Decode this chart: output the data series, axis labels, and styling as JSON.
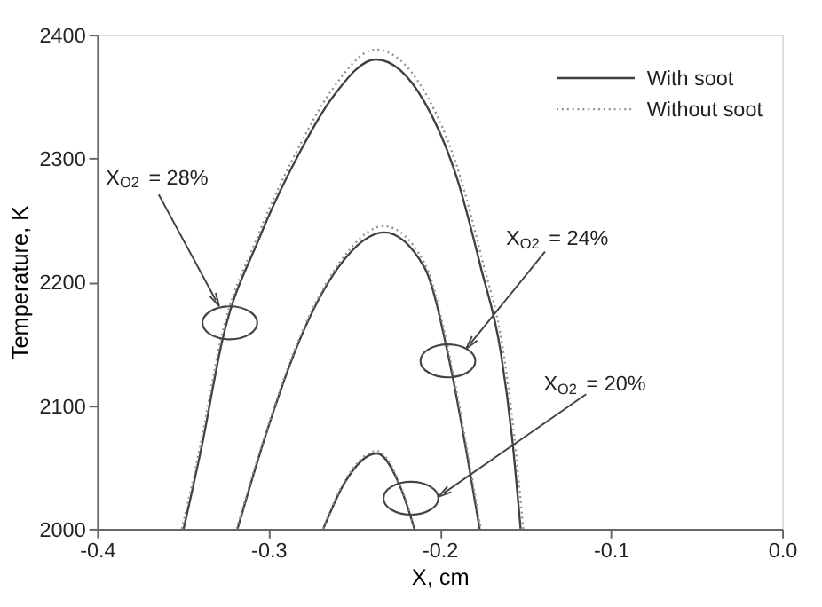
{
  "chart_data": {
    "type": "line",
    "xlabel": "X, cm",
    "ylabel": "Temperature, K",
    "xlim": [
      -0.4,
      0.0
    ],
    "ylim": [
      2000,
      2400
    ],
    "xticks": [
      -0.4,
      -0.3,
      -0.2,
      -0.1,
      {
        "value": 0.0,
        "label": "0.0"
      }
    ],
    "yticks": [
      2000,
      2100,
      2200,
      2300,
      2400
    ],
    "grid": false,
    "legend": "top right",
    "marker": "none",
    "series": [
      {
        "name": "With soot",
        "color": "#404040",
        "line_style": "solid",
        "x": [
          -0.3495,
          -0.3386,
          -0.327,
          -0.3054,
          -0.282,
          -0.2622,
          -0.2373,
          -0.209,
          -0.1892,
          -0.176,
          -0.1643,
          -0.1577,
          -0.1527
        ],
        "values": [
          2000,
          2069,
          2152,
          2235,
          2304,
          2350,
          2380,
          2346,
          2281,
          2212,
          2143,
          2074,
          2000
        ]
      },
      {
        "name": "Without soot",
        "color": "#909090",
        "line_style": "dotted",
        "x": [
          -0.3505,
          -0.3395,
          -0.328,
          -0.3062,
          -0.2826,
          -0.2626,
          -0.2373,
          -0.2084,
          -0.1884,
          -0.175,
          -0.1632,
          -0.1565,
          -0.1512
        ],
        "values": [
          2000,
          2069,
          2152,
          2237,
          2308,
          2356,
          2388,
          2353,
          2287,
          2217,
          2147,
          2076,
          2000
        ]
      },
      {
        "color": "#404040",
        "line_style": "solid",
        "x": [
          -0.318,
          -0.302,
          -0.282,
          -0.259,
          -0.2324,
          -0.209,
          -0.194,
          -0.184,
          -0.1766
        ],
        "values": [
          2000,
          2074,
          2152,
          2212,
          2240,
          2212,
          2134,
          2060,
          2000
        ]
      },
      {
        "color": "#909090",
        "line_style": "dotted",
        "x": [
          -0.3185,
          -0.3024,
          -0.2823,
          -0.2592,
          -0.2324,
          -0.2087,
          -0.1936,
          -0.1835,
          -0.176
        ],
        "values": [
          2000,
          2074,
          2153,
          2214,
          2245,
          2215,
          2136,
          2061,
          2000
        ]
      },
      {
        "color": "#404040",
        "line_style": "solid",
        "x": [
          -0.2679,
          -0.2556,
          -0.2367,
          -0.2224,
          -0.2147
        ],
        "values": [
          2000,
          2037,
          2061,
          2032,
          2000
        ]
      },
      {
        "color": "#909090",
        "line_style": "dotted",
        "x": [
          -0.2681,
          -0.2557,
          -0.2367,
          -0.2223,
          -0.2145
        ],
        "values": [
          2000,
          2038,
          2063,
          2033,
          2000
        ]
      }
    ],
    "annotations": [
      {
        "text": "X$_{O2}$ = 28%",
        "x": -0.3306,
        "y": 2185
      },
      {
        "text": "X$_{O2}$ = 24%",
        "x": -0.182,
        "y": 2150
      },
      {
        "text": "X$_{O2}$ = 20%",
        "x": -0.1975,
        "y": 2029
      }
    ]
  }
}
